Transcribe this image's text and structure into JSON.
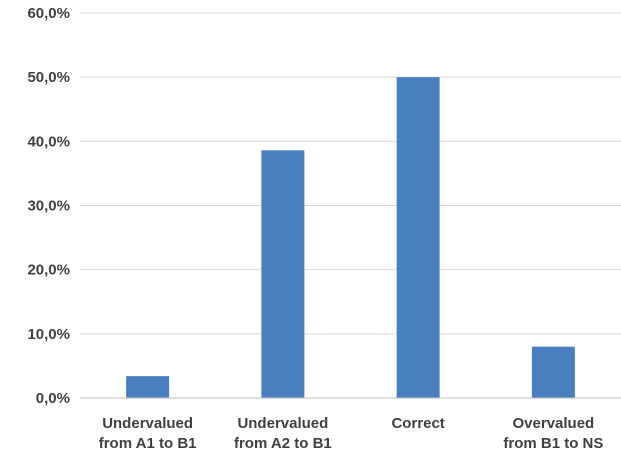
{
  "chart_data": {
    "type": "bar",
    "categories": [
      [
        "Undervalued",
        "from A1 to B1"
      ],
      [
        "Undervalued",
        "from A2 to B1"
      ],
      [
        "Correct"
      ],
      [
        "Overvalued",
        "from B1 to NS"
      ]
    ],
    "values": [
      3.4,
      38.6,
      50.0,
      8.0
    ],
    "ylim": [
      0,
      60
    ],
    "yticks": [
      "0,0%",
      "10,0%",
      "20,0%",
      "30,0%",
      "40,0%",
      "50,0%",
      "60,0%"
    ],
    "ytick_values": [
      0,
      10,
      20,
      30,
      40,
      50,
      60
    ],
    "grid": true,
    "legend": "none",
    "title": "",
    "xlabel": "",
    "ylabel": "",
    "colors": {
      "bar": "#4a7fbf",
      "grid": "#d9d9d9",
      "axis": "#bfbfbf",
      "text": "#404040"
    }
  }
}
